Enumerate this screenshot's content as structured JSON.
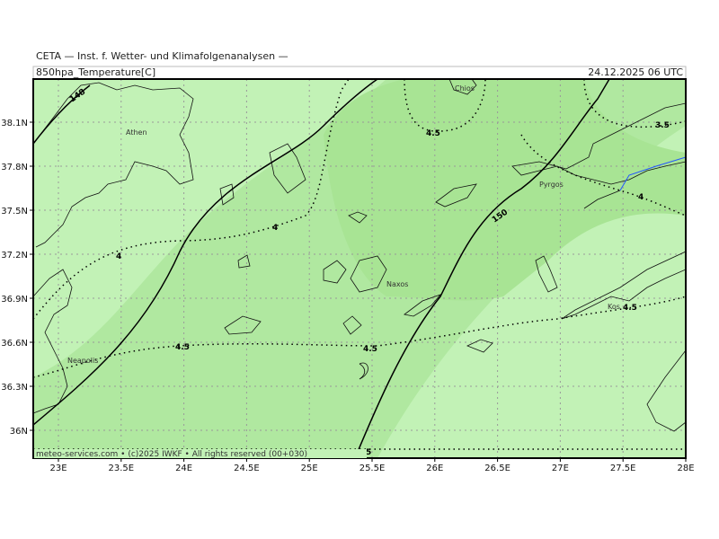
{
  "header": {
    "agency": "CETA — Inst. f. Wetter- und Klimafolgenanalysen —",
    "parameter": "850hpa_Temperature[C]",
    "datetime": "24.12.2025 06 UTC"
  },
  "x_labels": [
    "23E",
    "23.5E",
    "24E",
    "24.5E",
    "25E",
    "25.5E",
    "26E",
    "26.5E",
    "27E",
    "27.5E",
    "28E"
  ],
  "y_labels": [
    "38.1N",
    "37.8N",
    "37.5N",
    "37.2N",
    "36.9N",
    "36.6N",
    "36.3N",
    "36N"
  ],
  "places": [
    "Athen",
    "Chios",
    "Pyrgos",
    "Naxos",
    "Kos",
    "Neapolis"
  ],
  "contour_labels": [
    "148",
    "150",
    "4.5",
    "3.5",
    "4",
    "4",
    "4",
    "4.5",
    "4.5",
    "4.5",
    "5"
  ],
  "footer": "meteo-services.com • (c)2025 IWKF • All rights reserved (00+030)"
}
